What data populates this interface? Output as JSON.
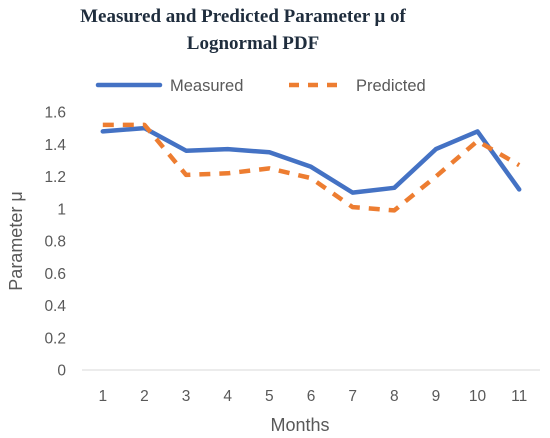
{
  "chart_data": {
    "type": "line",
    "title_line1": "Measured and Predicted Parameter μ of",
    "title_line2": "Lognormal PDF",
    "xlabel": "Months",
    "ylabel": "Parameter μ",
    "categories": [
      "1",
      "2",
      "3",
      "4",
      "5",
      "6",
      "7",
      "8",
      "9",
      "10",
      "11"
    ],
    "ylim": [
      0,
      1.6
    ],
    "yticks": [
      0,
      0.2,
      0.4,
      0.6,
      0.8,
      1,
      1.2,
      1.4,
      1.6
    ],
    "ytick_labels": [
      "0",
      "0.2",
      "0.4",
      "0.6",
      "0.8",
      "1",
      "1.2",
      "1.4",
      "1.6"
    ],
    "grid": false,
    "legend_position": "top",
    "series": [
      {
        "name": "Measured",
        "color": "#4472c4",
        "style": "solid",
        "values": [
          1.48,
          1.5,
          1.36,
          1.37,
          1.35,
          1.26,
          1.1,
          1.13,
          1.37,
          1.48,
          1.12
        ]
      },
      {
        "name": "Predicted",
        "color": "#ed7d31",
        "style": "dashed",
        "values": [
          1.52,
          1.52,
          1.21,
          1.22,
          1.25,
          1.19,
          1.01,
          0.99,
          1.2,
          1.42,
          1.27
        ]
      }
    ]
  }
}
